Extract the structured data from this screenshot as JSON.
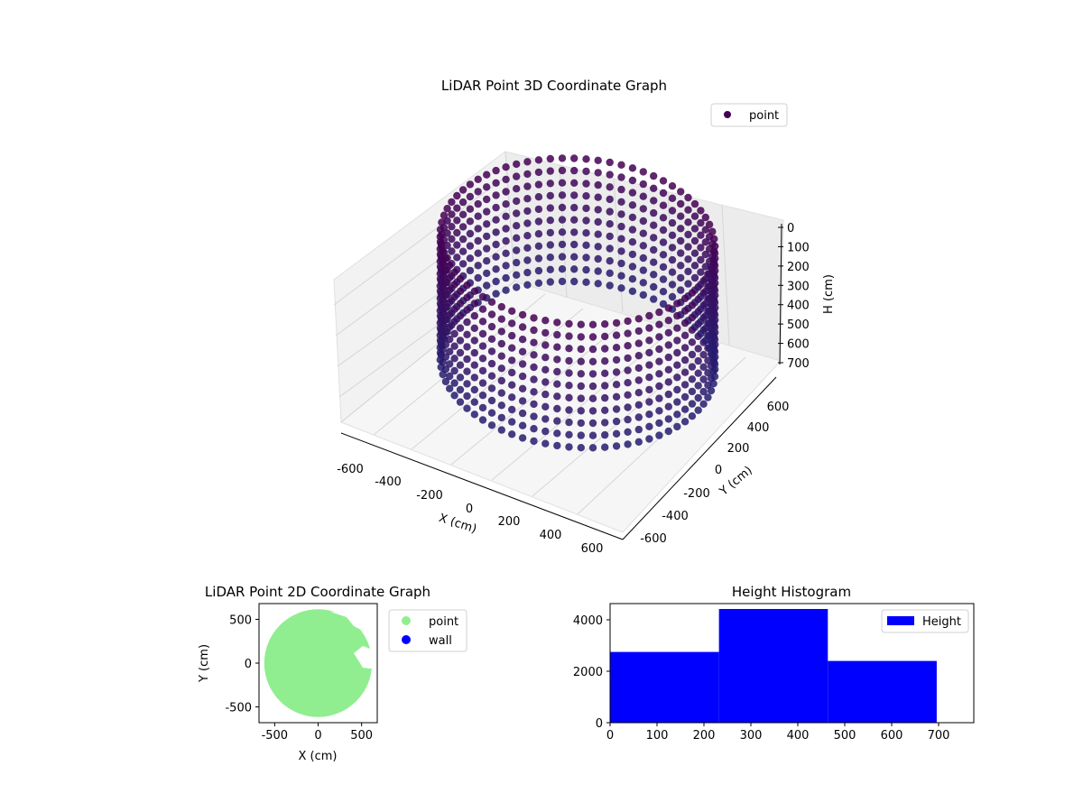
{
  "chart_data": [
    {
      "type": "scatter3d",
      "title": "LiDAR Point 3D Coordinate Graph",
      "xlabel": "X (cm)",
      "ylabel": "Y (cm)",
      "zlabel": "H (cm)",
      "xlim": [
        -700,
        700
      ],
      "ylim": [
        -700,
        700
      ],
      "zlim": [
        0,
        760
      ],
      "z_inverted": true,
      "xticks": [
        -600,
        -400,
        -200,
        0,
        200,
        400,
        600
      ],
      "yticks": [
        -600,
        -400,
        -200,
        0,
        200,
        400,
        600
      ],
      "zticks": [
        0,
        100,
        200,
        300,
        400,
        500,
        600,
        700
      ],
      "legend": {
        "entries": [
          "point"
        ],
        "placement": "upper right"
      },
      "colormap": "viridis",
      "series": [
        {
          "name": "point",
          "shape": "cylindrical wall of points",
          "radius": 600,
          "height_range": [
            0,
            700
          ],
          "color": "#440154"
        }
      ],
      "grid": true
    },
    {
      "type": "scatter",
      "title": "LiDAR Point 2D Coordinate Graph",
      "xlabel": "X (cm)",
      "ylabel": "Y (cm)",
      "xlim": [
        -680,
        680
      ],
      "ylim": [
        -680,
        680
      ],
      "xticks": [
        -500,
        0,
        500
      ],
      "yticks": [
        -500,
        0,
        500
      ],
      "legend": {
        "entries": [
          "point",
          "wall"
        ],
        "placement": "outside right"
      },
      "series": [
        {
          "name": "point",
          "color": "#90ee90",
          "shape": "filled disc",
          "radius": 620
        },
        {
          "name": "wall",
          "color": "#0000ff"
        }
      ],
      "grid": false
    },
    {
      "type": "bar",
      "title": "Height Histogram",
      "xlabel": "",
      "ylabel": "",
      "xlim": [
        0,
        775
      ],
      "ylim": [
        0,
        4630
      ],
      "xticks": [
        0,
        100,
        200,
        300,
        400,
        500,
        600,
        700
      ],
      "yticks": [
        0,
        2000,
        4000
      ],
      "bins": [
        {
          "from": 0,
          "to": 232,
          "count": 2750
        },
        {
          "from": 232,
          "to": 464,
          "count": 4420
        },
        {
          "from": 464,
          "to": 696,
          "count": 2400
        }
      ],
      "legend": {
        "entries": [
          "Height"
        ],
        "placement": "upper right"
      },
      "series": [
        {
          "name": "Height",
          "color": "#0000ff"
        }
      ],
      "grid": false
    }
  ]
}
